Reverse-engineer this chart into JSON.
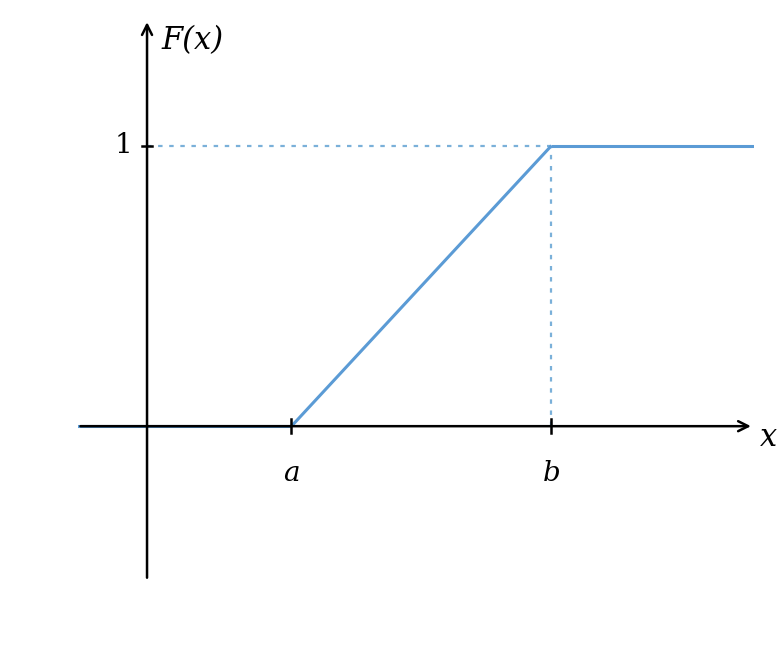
{
  "background_color": "#ffffff",
  "line_color": "#5b9bd5",
  "dotted_color": "#7ab0d9",
  "axis_color": "#000000",
  "a_val": 2.5,
  "b_val": 7.0,
  "x_min": -1.2,
  "x_max": 10.5,
  "y_min": -0.55,
  "y_max": 1.45,
  "label_a": "a",
  "label_b": "b",
  "label_1": "1",
  "label_Fx": "F(x)",
  "label_x": "x",
  "line_width": 2.2,
  "dotted_linewidth": 1.6,
  "font_size_labels": 20,
  "font_size_axis_labels": 22,
  "arrow_mutation_scale": 18,
  "arrow_lw": 1.8
}
